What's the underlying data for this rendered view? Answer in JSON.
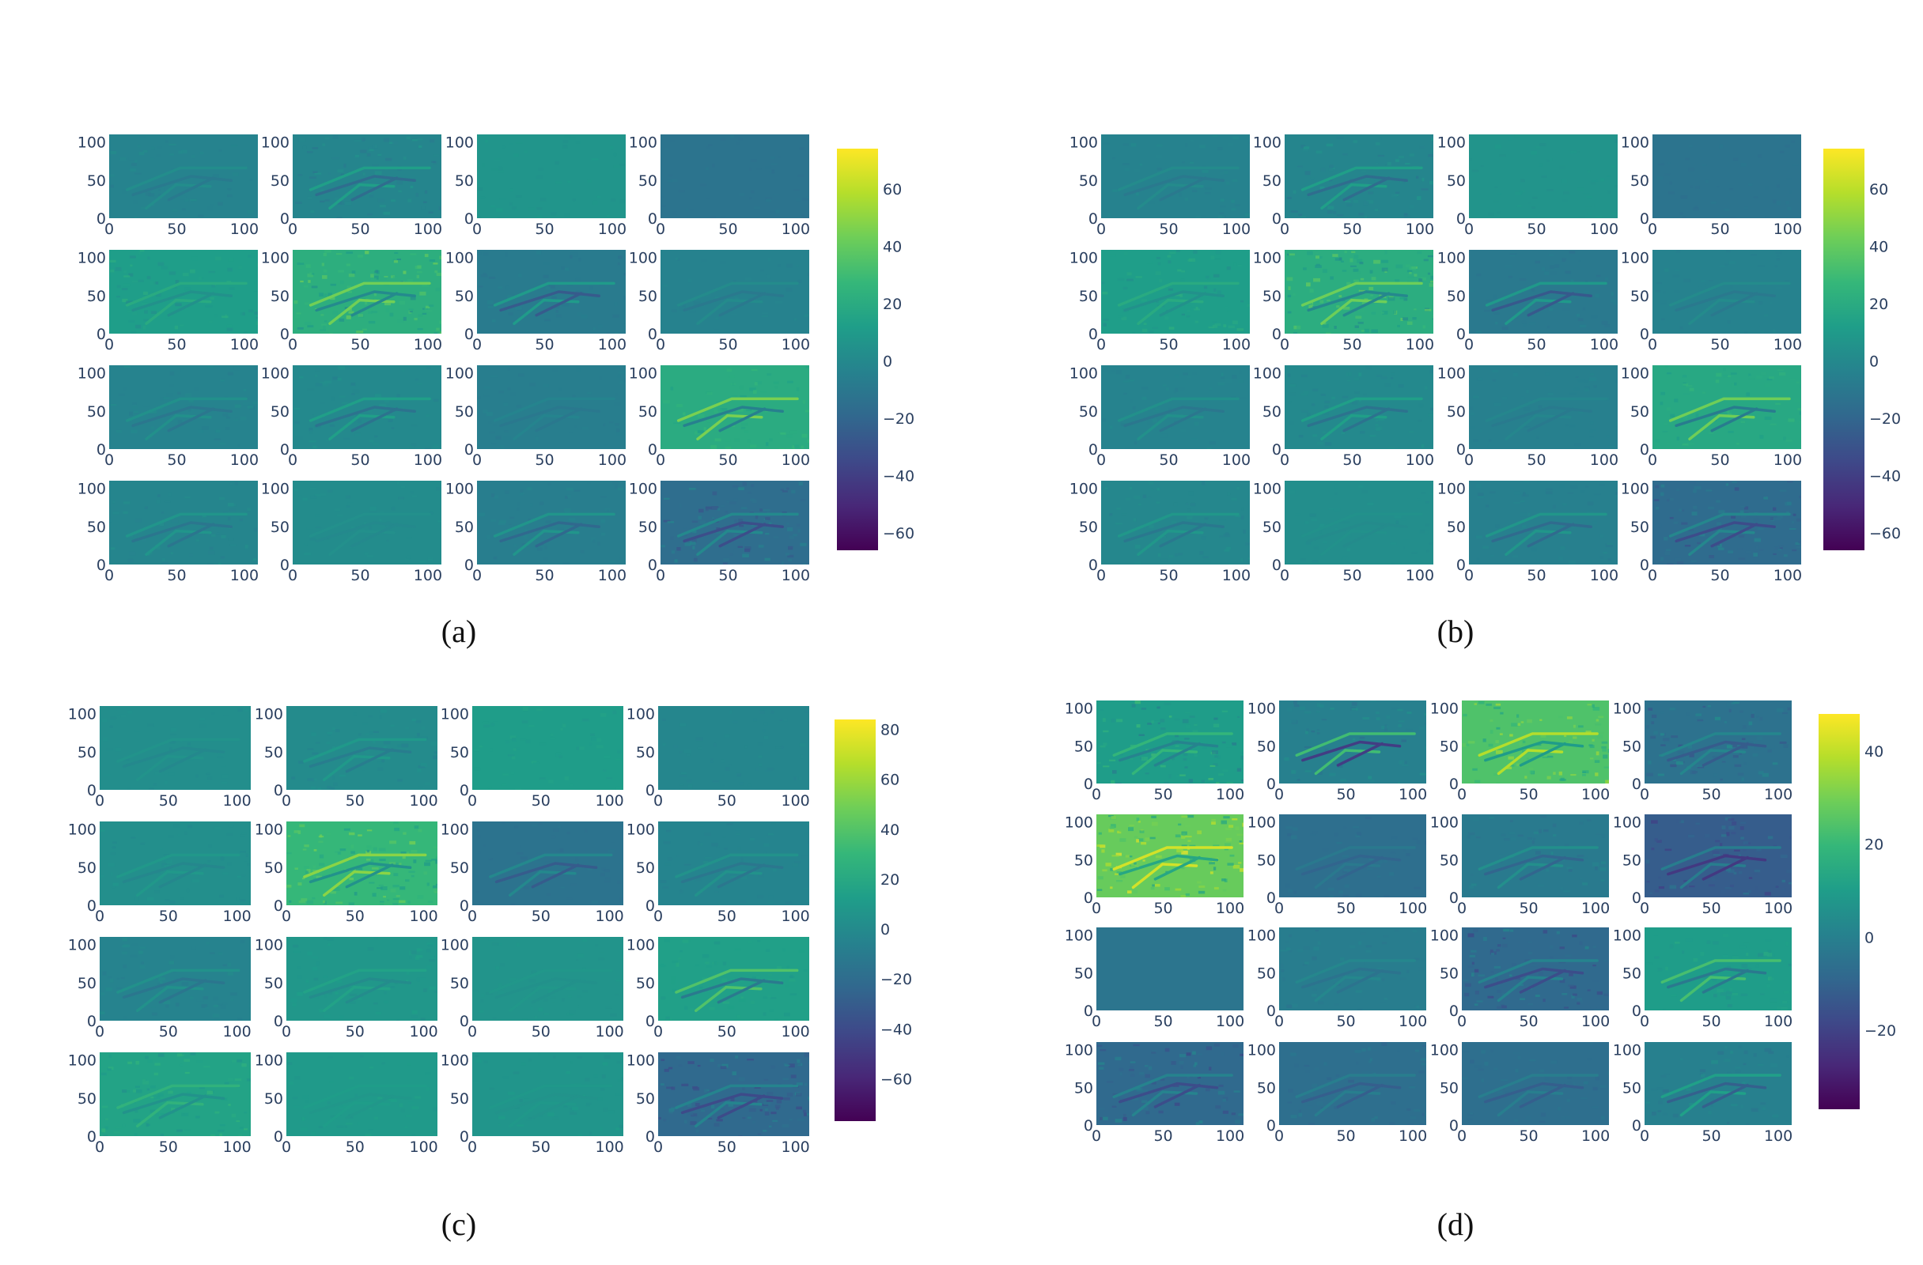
{
  "colormap": [
    "#440154",
    "#482878",
    "#3e4989",
    "#31688e",
    "#26828e",
    "#1f9e89",
    "#35b779",
    "#6ece58",
    "#b5de2b",
    "#fde725"
  ],
  "panels": [
    {
      "caption": "(a)",
      "colorbar": {
        "min": -66,
        "max": 74,
        "ticks": [
          60,
          40,
          20,
          0,
          -20,
          -40,
          -60
        ]
      },
      "maps": [
        {
          "base": -3,
          "noise": 3,
          "edge": 3
        },
        {
          "base": -2,
          "noise": 6,
          "edge": 8
        },
        {
          "base": 7,
          "noise": 2,
          "edge": 0
        },
        {
          "base": -12,
          "noise": 2,
          "edge": 0
        },
        {
          "base": 12,
          "noise": 7,
          "edge": 4
        },
        {
          "base": 22,
          "noise": 14,
          "edge": 12
        },
        {
          "base": -8,
          "noise": 3,
          "edge": 10
        },
        {
          "base": -4,
          "noise": 2,
          "edge": 3
        },
        {
          "base": -3,
          "noise": 3,
          "edge": 4
        },
        {
          "base": 0,
          "noise": 4,
          "edge": 7
        },
        {
          "base": -6,
          "noise": 2,
          "edge": 2
        },
        {
          "base": 20,
          "noise": 5,
          "edge": 14
        },
        {
          "base": -2,
          "noise": 4,
          "edge": 5
        },
        {
          "base": 2,
          "noise": 2,
          "edge": 1
        },
        {
          "base": -6,
          "noise": 3,
          "edge": 7
        },
        {
          "base": -16,
          "noise": 10,
          "edge": 9
        }
      ]
    },
    {
      "caption": "(b)",
      "colorbar": {
        "min": -66,
        "max": 74,
        "ticks": [
          60,
          40,
          20,
          0,
          -20,
          -40,
          -60
        ]
      },
      "maps": [
        {
          "base": -4,
          "noise": 3,
          "edge": 3
        },
        {
          "base": -2,
          "noise": 6,
          "edge": 8
        },
        {
          "base": 6,
          "noise": 2,
          "edge": 0
        },
        {
          "base": -12,
          "noise": 2,
          "edge": 0
        },
        {
          "base": 12,
          "noise": 7,
          "edge": 4
        },
        {
          "base": 21,
          "noise": 13,
          "edge": 12
        },
        {
          "base": -9,
          "noise": 3,
          "edge": 10
        },
        {
          "base": -4,
          "noise": 2,
          "edge": 3
        },
        {
          "base": -3,
          "noise": 3,
          "edge": 4
        },
        {
          "base": 0,
          "noise": 4,
          "edge": 7
        },
        {
          "base": -5,
          "noise": 2,
          "edge": 2
        },
        {
          "base": 18,
          "noise": 5,
          "edge": 14
        },
        {
          "base": -1,
          "noise": 4,
          "edge": 5
        },
        {
          "base": 3,
          "noise": 2,
          "edge": 1
        },
        {
          "base": -5,
          "noise": 3,
          "edge": 7
        },
        {
          "base": -17,
          "noise": 10,
          "edge": 9
        }
      ]
    },
    {
      "caption": "(c)",
      "colorbar": {
        "min": -77,
        "max": 84,
        "ticks": [
          80,
          60,
          40,
          20,
          0,
          -20,
          -40,
          -60
        ]
      },
      "maps": [
        {
          "base": 2,
          "noise": 2,
          "edge": 2
        },
        {
          "base": 0,
          "noise": 4,
          "edge": 5
        },
        {
          "base": 12,
          "noise": 3,
          "edge": 0
        },
        {
          "base": -3,
          "noise": 2,
          "edge": 0
        },
        {
          "base": 3,
          "noise": 3,
          "edge": 3
        },
        {
          "base": 30,
          "noise": 14,
          "edge": 14
        },
        {
          "base": -16,
          "noise": 2,
          "edge": 8
        },
        {
          "base": -4,
          "noise": 3,
          "edge": 5
        },
        {
          "base": -5,
          "noise": 4,
          "edge": 5
        },
        {
          "base": 8,
          "noise": 4,
          "edge": 4
        },
        {
          "base": 6,
          "noise": 2,
          "edge": 1
        },
        {
          "base": 14,
          "noise": 4,
          "edge": 14
        },
        {
          "base": 16,
          "noise": 8,
          "edge": 6
        },
        {
          "base": 10,
          "noise": 3,
          "edge": 1
        },
        {
          "base": 7,
          "noise": 3,
          "edge": 1
        },
        {
          "base": -22,
          "noise": 12,
          "edge": 10
        }
      ]
    },
    {
      "caption": "(d)",
      "colorbar": {
        "min": -37,
        "max": 48,
        "ticks": [
          40,
          20,
          0,
          -20
        ]
      },
      "maps": [
        {
          "base": 10,
          "noise": 8,
          "edge": 5
        },
        {
          "base": 0,
          "noise": 4,
          "edge": 12
        },
        {
          "base": 24,
          "noise": 8,
          "edge": 8
        },
        {
          "base": -5,
          "noise": 7,
          "edge": 4
        },
        {
          "base": 28,
          "noise": 12,
          "edge": 8
        },
        {
          "base": -6,
          "noise": 2,
          "edge": 2
        },
        {
          "base": -2,
          "noise": 3,
          "edge": 4
        },
        {
          "base": -12,
          "noise": 6,
          "edge": 6
        },
        {
          "base": -4,
          "noise": 0,
          "edge": 0
        },
        {
          "base": -1,
          "noise": 2,
          "edge": 2
        },
        {
          "base": -8,
          "noise": 7,
          "edge": 5
        },
        {
          "base": 10,
          "noise": 3,
          "edge": 7
        },
        {
          "base": -8,
          "noise": 7,
          "edge": 5
        },
        {
          "base": -6,
          "noise": 3,
          "edge": 3
        },
        {
          "base": -6,
          "noise": 2,
          "edge": 3
        },
        {
          "base": 0,
          "noise": 3,
          "edge": 6
        }
      ]
    }
  ],
  "chart_data": [
    {
      "type": "heatmap",
      "panel": "(a)",
      "grid": "4x4",
      "x_ticks": [
        0,
        50,
        100
      ],
      "y_ticks": [
        0,
        50,
        100
      ],
      "xlim": [
        0,
        110
      ],
      "ylim": [
        0,
        110
      ],
      "colorbar_ticks": [
        60,
        40,
        20,
        0,
        -20,
        -40,
        -60
      ],
      "colorscale": "viridis"
    },
    {
      "type": "heatmap",
      "panel": "(b)",
      "grid": "4x4",
      "x_ticks": [
        0,
        50,
        100
      ],
      "y_ticks": [
        0,
        50,
        100
      ],
      "xlim": [
        0,
        110
      ],
      "ylim": [
        0,
        110
      ],
      "colorbar_ticks": [
        60,
        40,
        20,
        0,
        -20,
        -40,
        -60
      ],
      "colorscale": "viridis"
    },
    {
      "type": "heatmap",
      "panel": "(c)",
      "grid": "4x4",
      "x_ticks": [
        0,
        50,
        100
      ],
      "y_ticks": [
        0,
        50,
        100
      ],
      "xlim": [
        0,
        110
      ],
      "ylim": [
        0,
        110
      ],
      "colorbar_ticks": [
        80,
        60,
        40,
        20,
        0,
        -20,
        -40,
        -60
      ],
      "colorscale": "viridis"
    },
    {
      "type": "heatmap",
      "panel": "(d)",
      "grid": "4x4",
      "x_ticks": [
        0,
        50,
        100
      ],
      "y_ticks": [
        0,
        50,
        100
      ],
      "xlim": [
        0,
        110
      ],
      "ylim": [
        0,
        110
      ],
      "colorbar_ticks": [
        40,
        20,
        0,
        -20
      ],
      "colorscale": "viridis"
    }
  ]
}
